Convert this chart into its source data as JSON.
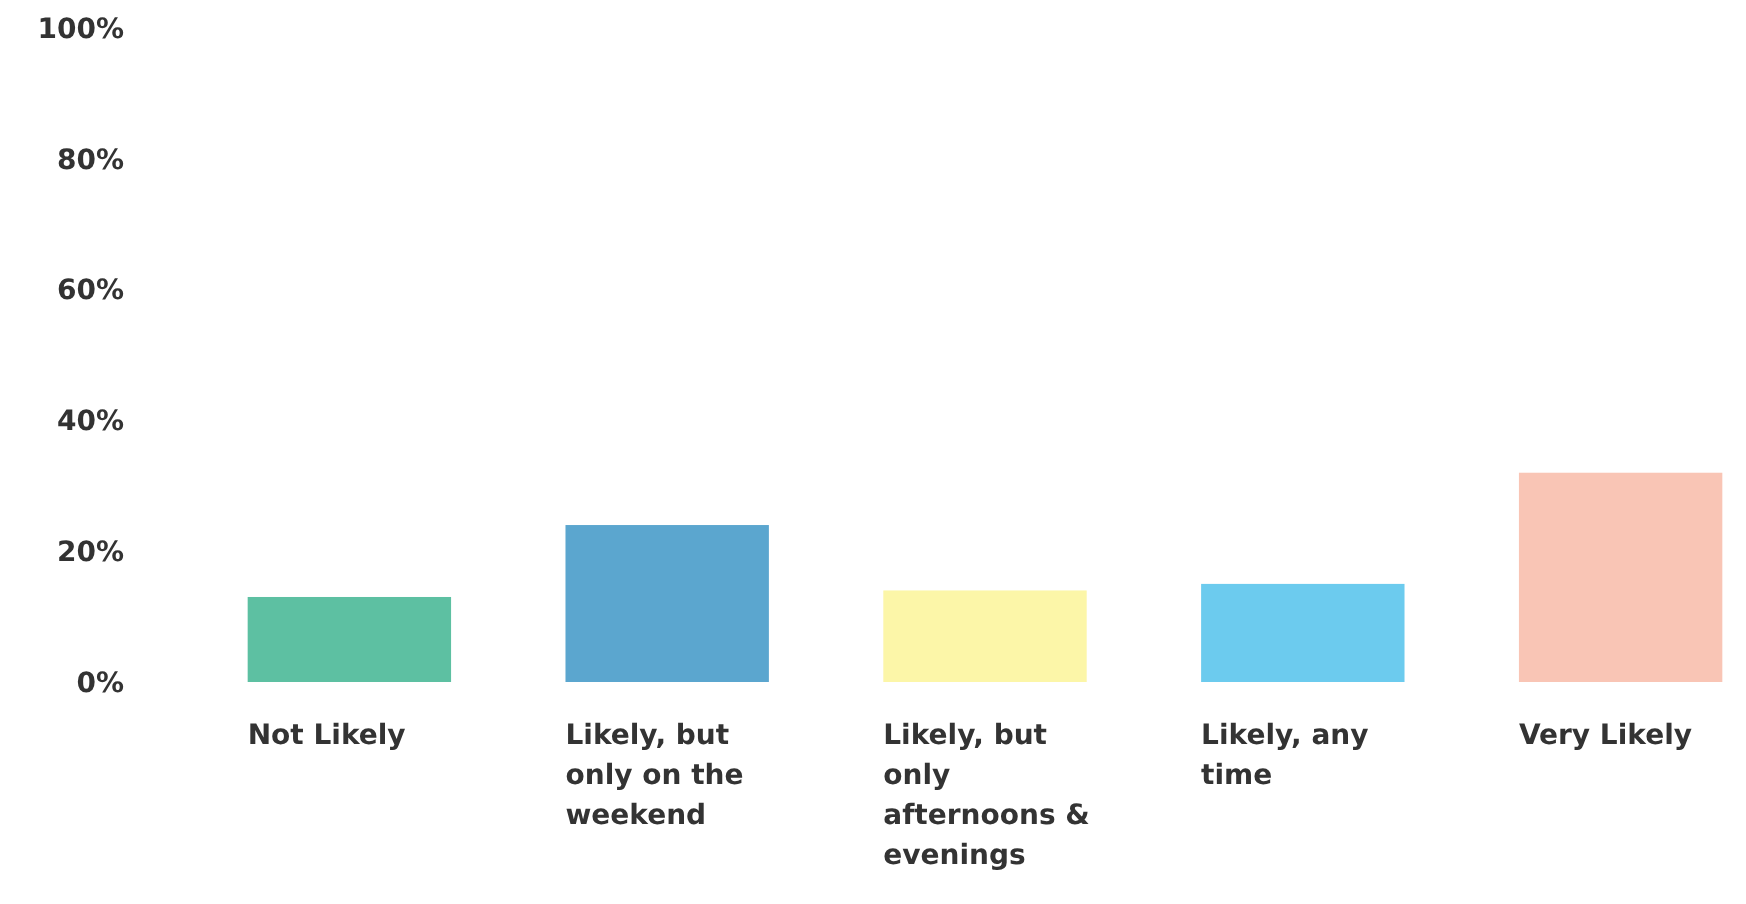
{
  "chart_data": {
    "type": "bar",
    "categories": [
      "Not Likely",
      "Likely, but only on the weekend",
      "Likely, but only afternoons & evenings",
      "Likely, any time",
      "Very Likely"
    ],
    "values": [
      13,
      24,
      14,
      15,
      32
    ],
    "colors": [
      "#5dc0a2",
      "#5ba6cf",
      "#fcf6a8",
      "#6ccbee",
      "#f9c5b5"
    ],
    "ylim": [
      0,
      100
    ],
    "yticks": [
      {
        "value": 0,
        "label": "0%"
      },
      {
        "value": 20,
        "label": "20%"
      },
      {
        "value": 40,
        "label": "40%"
      },
      {
        "value": 60,
        "label": "60%"
      },
      {
        "value": 80,
        "label": "80%"
      },
      {
        "value": 100,
        "label": "100%"
      }
    ],
    "grid": false
  }
}
